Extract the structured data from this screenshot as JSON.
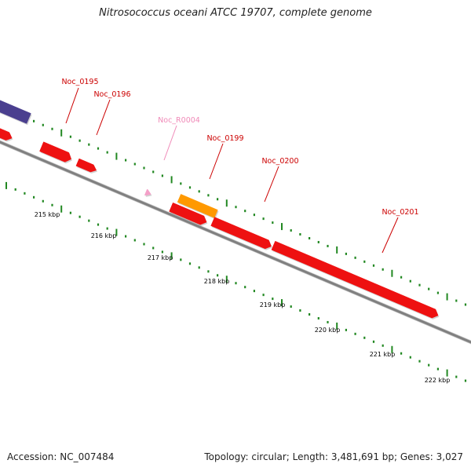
{
  "title": "Nitrosococcus oceani ATCC 19707, complete genome",
  "footer": {
    "accession": "Accession: NC_007484",
    "summary": "Topology: circular; Length: 3,481,691 bp; Genes: 3,027"
  },
  "colors": {
    "cds": "#ee1111",
    "rna": "#f4a0c8",
    "highlight": "#ff9900",
    "other": "#4a3f8f",
    "tick": "#228822",
    "backbone": "#808080",
    "label_cds": "#cc0000",
    "label_rna": "#f08ab8"
  },
  "genes": [
    {
      "name": "Noc_0195",
      "kind": "cds"
    },
    {
      "name": "Noc_0196",
      "kind": "cds"
    },
    {
      "name": "Noc_R0004",
      "kind": "rna"
    },
    {
      "name": "Noc_0199",
      "kind": "cds"
    },
    {
      "name": "Noc_0200",
      "kind": "cds"
    },
    {
      "name": "Noc_0201",
      "kind": "cds"
    }
  ],
  "kbp_labels": [
    "215 kbp",
    "216 kbp",
    "217 kbp",
    "218 kbp",
    "219 kbp",
    "220 kbp",
    "221 kbp",
    "222 kbp"
  ]
}
